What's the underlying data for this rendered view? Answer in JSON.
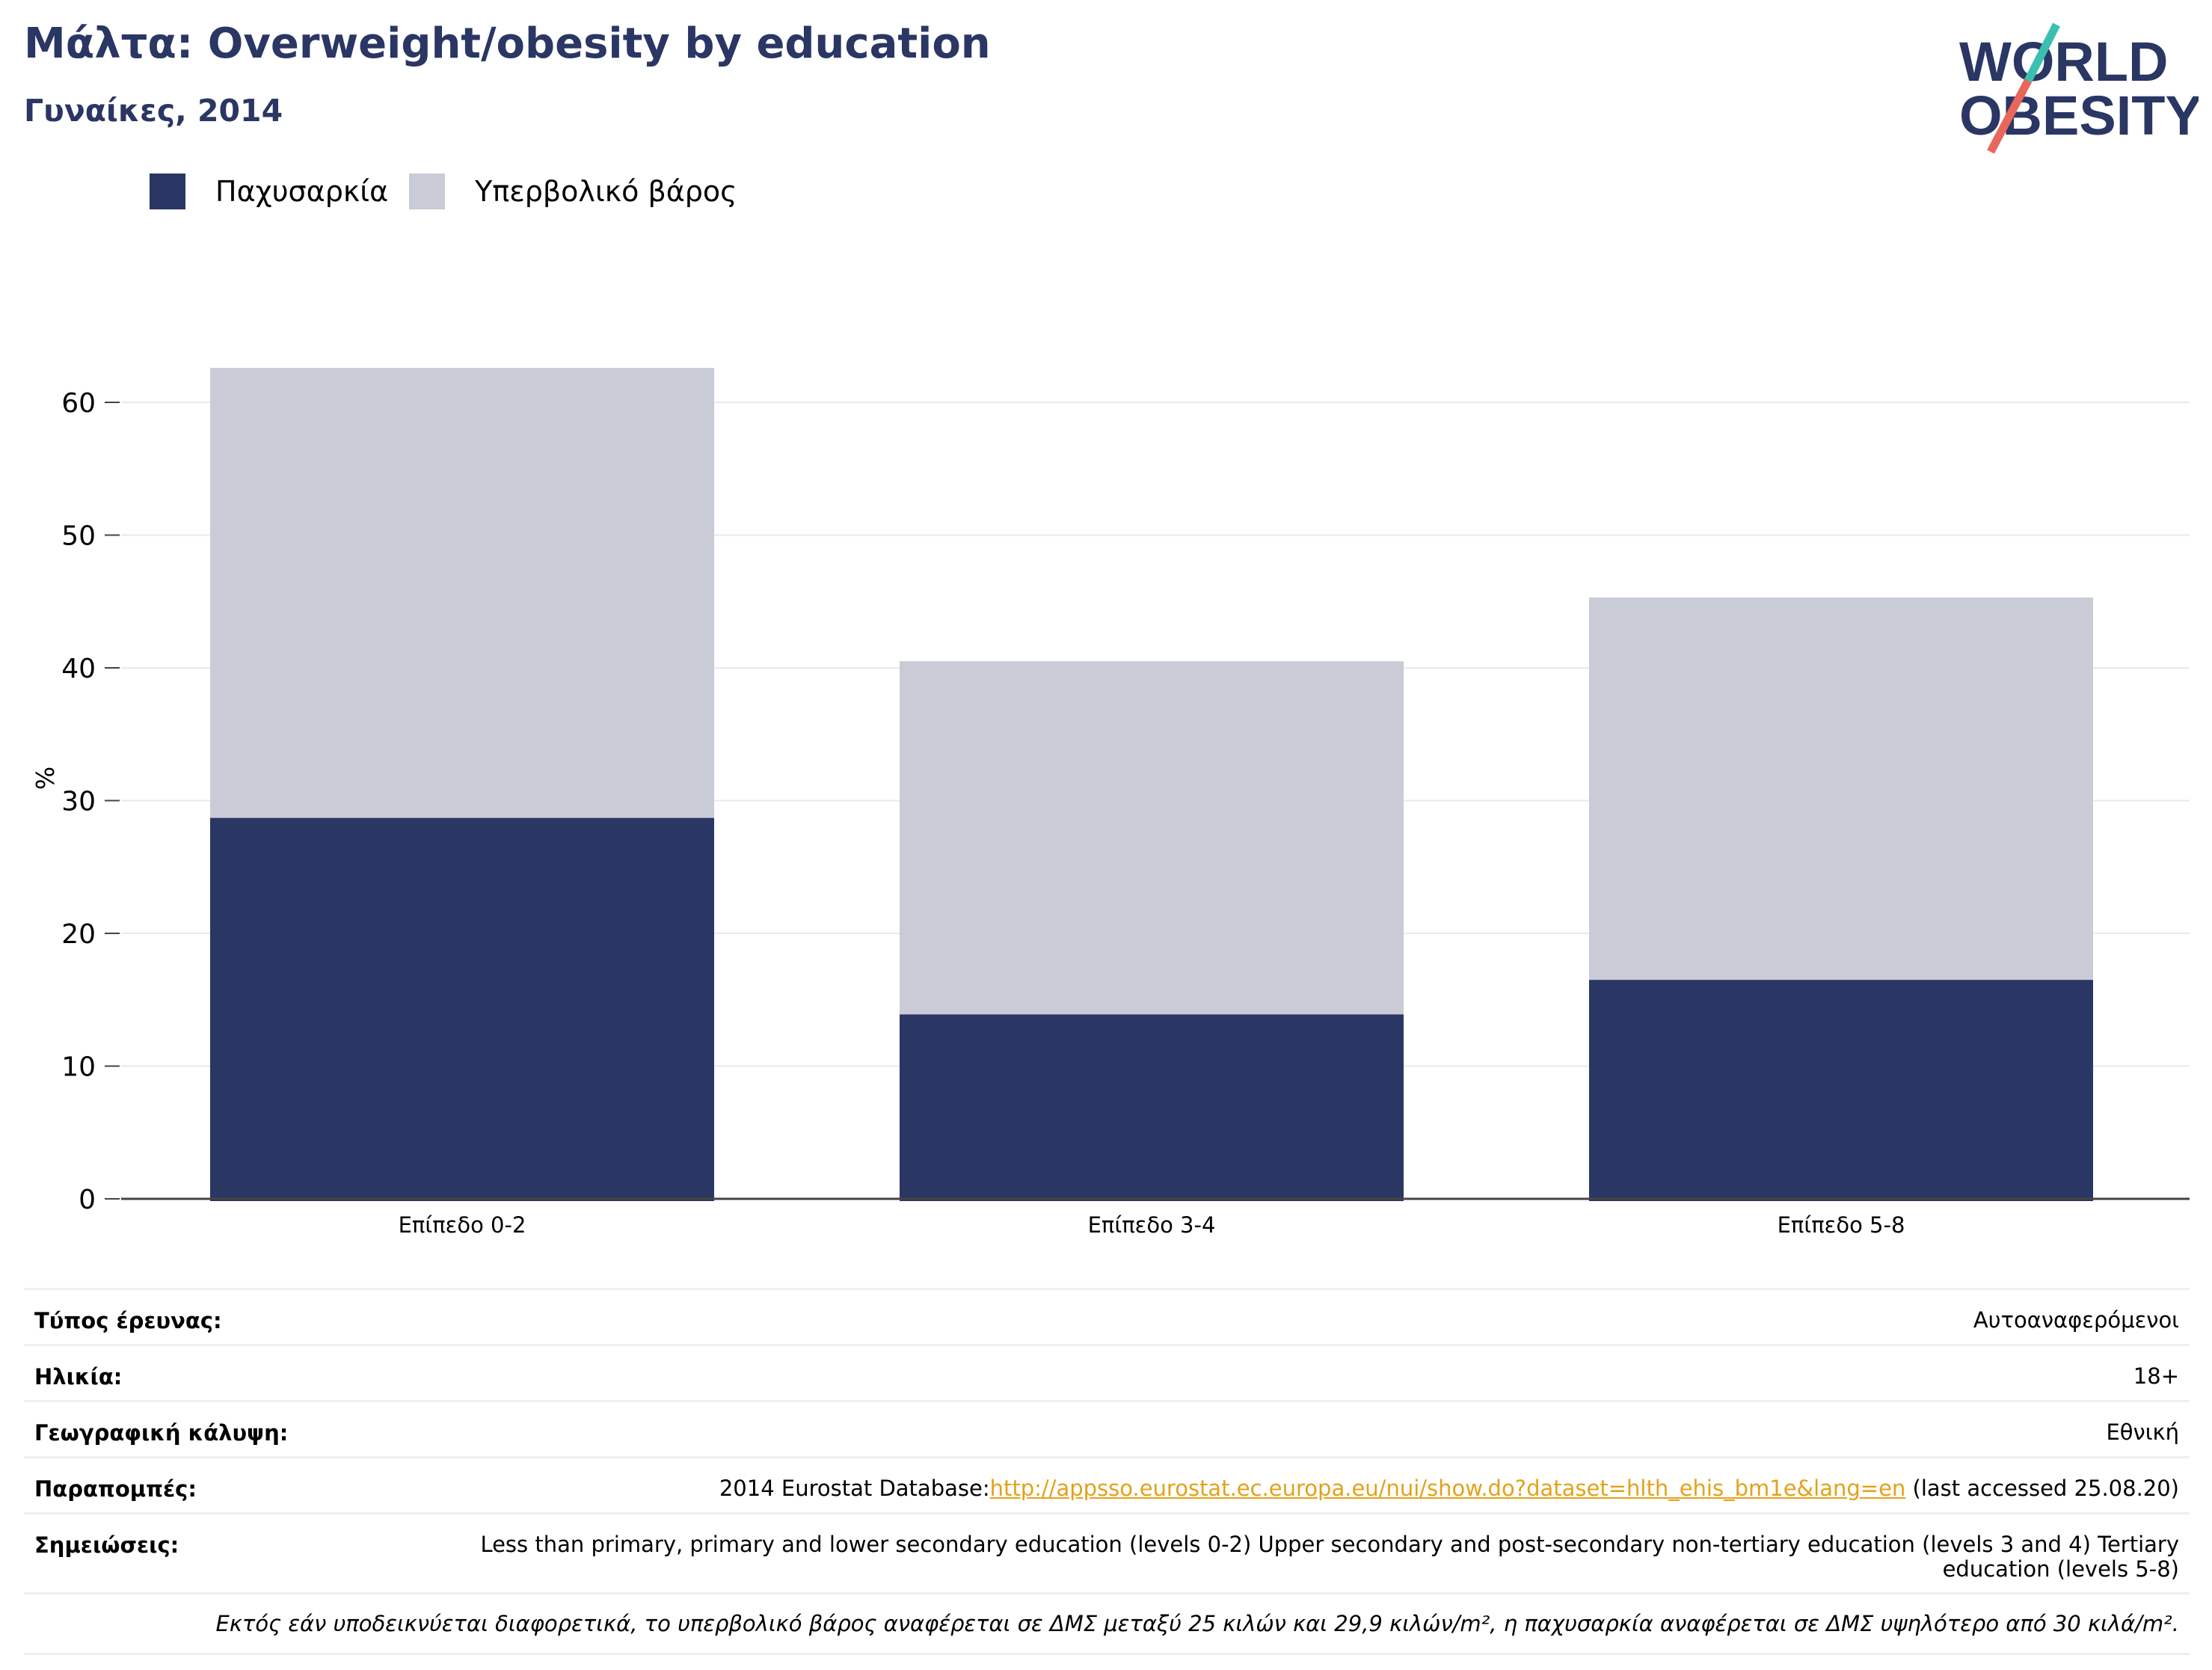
{
  "header": {
    "title": "Μάλτα: Overweight/obesity by education",
    "subtitle": "Γυναίκες, 2014",
    "logo_text_line1": "WORLD",
    "logo_text_line2": "OBESITY"
  },
  "colors": {
    "obesity": "#2a3663",
    "overweight": "#c9cbd7",
    "brand": "#2a3663",
    "link": "#e3a21a",
    "logo_teal": "#3bbfb1",
    "logo_coral": "#e8665a"
  },
  "chart_data": {
    "type": "bar",
    "stacked": true,
    "categories": [
      "Επίπεδο 0-2",
      "Επίπεδο 3-4",
      "Επίπεδο 5-8"
    ],
    "series": [
      {
        "name": "Παχυσαρκία",
        "values": [
          28.7,
          13.9,
          16.5
        ]
      },
      {
        "name": "Υπερβολικό βάρος",
        "values": [
          33.9,
          26.6,
          28.8
        ]
      }
    ],
    "ylabel": "%",
    "ylim": [
      0,
      63
    ],
    "yticks": [
      0,
      10,
      20,
      30,
      40,
      50,
      60
    ],
    "grid": true,
    "legend_position": "top-left"
  },
  "meta": {
    "rows": [
      {
        "key": "Τύπος έρευνας:",
        "value": "Αυτοαναφερόμενοι"
      },
      {
        "key": "Ηλικία:",
        "value": "18+"
      },
      {
        "key": "Γεωγραφική κάλυψη:",
        "value": "Εθνική"
      },
      {
        "key": "Παραπομπές:",
        "value_prefix": "2014 Eurostat Database:",
        "link": "http://appsso.eurostat.ec.europa.eu/nui/show.do?dataset=hlth_ehis_bm1e&lang=en",
        "value_suffix": " (last accessed 25.08.20)"
      },
      {
        "key": "Σημειώσεις:",
        "value": "Less than primary, primary and lower secondary education (levels 0-2) Upper secondary and post-secondary non-tertiary education (levels 3 and 4) Tertiary education (levels 5-8)"
      }
    ],
    "note": "Εκτός εάν υποδεικνύεται διαφορετικά, το υπερβολικό βάρος αναφέρεται σε ΔΜΣ μεταξύ 25 κιλών και 29,9 κιλών/m², η παχυσαρκία αναφέρεται σε ΔΜΣ υψηλότερο από 30 κιλά/m²."
  }
}
